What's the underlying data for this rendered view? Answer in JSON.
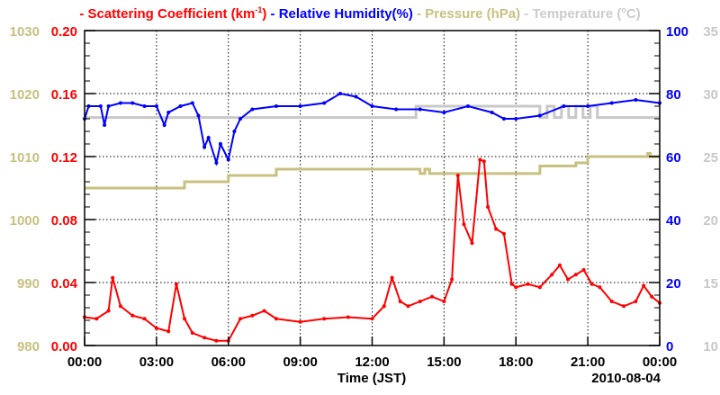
{
  "chart_data": {
    "type": "line",
    "title": "",
    "legend": {
      "placement": "top",
      "entries": [
        {
          "prefix": "- ",
          "label": "Scattering Coefficient (km",
          "sup": "-1",
          "suffix": ")",
          "color": "#ff0000"
        },
        {
          "prefix": " - ",
          "label": "Relative Humidity(%)",
          "sup": "",
          "suffix": "",
          "color": "#0000ff"
        },
        {
          "prefix": " - ",
          "label": "Pressure (hPa)",
          "sup": "",
          "suffix": "",
          "color": "#c8c080"
        },
        {
          "prefix": " - ",
          "label": "Temperature (",
          "sup": "o",
          "suffix": "C)",
          "color": "#cccccc"
        }
      ]
    },
    "xlabel": "Time (JST)",
    "date_label": "2010-08-04",
    "xlim_hours": [
      0,
      24
    ],
    "x_ticks": [
      "00:00",
      "03:00",
      "06:00",
      "09:00",
      "12:00",
      "15:00",
      "18:00",
      "21:00",
      "00:00"
    ],
    "grid": true,
    "axes": {
      "scattering": {
        "side": "left-inner",
        "range": [
          0,
          0.2
        ],
        "ticks": [
          "0.00",
          "0.04",
          "0.08",
          "0.12",
          "0.16",
          "0.20"
        ],
        "color": "#ff0000"
      },
      "pressure": {
        "side": "left-outer",
        "range": [
          980,
          1030
        ],
        "ticks": [
          "980",
          "990",
          "1000",
          "1010",
          "1020",
          "1030"
        ],
        "color": "#c8c080"
      },
      "humidity": {
        "side": "right-inner",
        "range": [
          0,
          100
        ],
        "ticks": [
          "0",
          "20",
          "40",
          "60",
          "80",
          "100"
        ],
        "color": "#0000ff"
      },
      "temperature": {
        "side": "right-outer",
        "range": [
          10,
          35
        ],
        "ticks": [
          "10",
          "15",
          "20",
          "25",
          "30",
          "35"
        ],
        "color": "#c8c8c8"
      }
    },
    "series": [
      {
        "name": "Scattering Coefficient",
        "axis": "scattering",
        "color": "#ff0000",
        "markers": true,
        "x": [
          0,
          0.5,
          1,
          1.17,
          1.5,
          2,
          2.5,
          3,
          3.5,
          3.83,
          4.17,
          4.5,
          5,
          5.5,
          6,
          6.5,
          7,
          7.5,
          8,
          9,
          10,
          11,
          12,
          12.5,
          12.83,
          13.17,
          13.5,
          14,
          14.5,
          15,
          15.33,
          15.58,
          15.83,
          16.17,
          16.5,
          16.67,
          16.83,
          17.17,
          17.5,
          17.83,
          18,
          18.5,
          19,
          19.5,
          19.83,
          20.17,
          20.5,
          20.83,
          21.17,
          21.5,
          22,
          22.5,
          23,
          23.33,
          23.67,
          24
        ],
        "y": [
          0.018,
          0.017,
          0.022,
          0.043,
          0.025,
          0.019,
          0.017,
          0.011,
          0.009,
          0.039,
          0.017,
          0.008,
          0.005,
          0.003,
          0.003,
          0.017,
          0.019,
          0.022,
          0.017,
          0.015,
          0.017,
          0.018,
          0.017,
          0.025,
          0.043,
          0.028,
          0.025,
          0.028,
          0.031,
          0.028,
          0.042,
          0.108,
          0.077,
          0.065,
          0.118,
          0.117,
          0.088,
          0.074,
          0.071,
          0.039,
          0.037,
          0.039,
          0.037,
          0.045,
          0.051,
          0.042,
          0.045,
          0.048,
          0.039,
          0.037,
          0.028,
          0.025,
          0.028,
          0.038,
          0.031,
          0.027
        ]
      },
      {
        "name": "Relative Humidity",
        "axis": "humidity",
        "color": "#0000ff",
        "markers": true,
        "x": [
          0,
          0.17,
          0.67,
          0.83,
          1,
          1.5,
          2,
          2.5,
          3,
          3.33,
          3.5,
          4,
          4.5,
          4.75,
          5,
          5.17,
          5.5,
          5.67,
          6,
          6.25,
          6.5,
          7,
          8,
          9,
          10,
          10.67,
          11.33,
          12,
          13,
          14,
          15,
          16,
          17,
          17.5,
          18,
          19,
          20,
          21,
          22,
          23,
          24
        ],
        "y": [
          72,
          76,
          76,
          70,
          76,
          77,
          77,
          76,
          76,
          70,
          74,
          76,
          77,
          73,
          63,
          66,
          58,
          64,
          59,
          68,
          72,
          75,
          76,
          76,
          77,
          80,
          79,
          76,
          75,
          75,
          74,
          76,
          74,
          72,
          72,
          73,
          76,
          76,
          77,
          78,
          77
        ]
      },
      {
        "name": "Pressure",
        "axis": "pressure",
        "color": "#c8c080",
        "markers": false,
        "step": true,
        "x": [
          0,
          4.17,
          6,
          8,
          14,
          14.2,
          14.4,
          15,
          19,
          20.5,
          21,
          23.5,
          23.6,
          24
        ],
        "y": [
          1005,
          1006,
          1007,
          1008,
          1007.3,
          1008,
          1007.3,
          1007.3,
          1008.5,
          1009,
          1010,
          1010.5,
          1010,
          1010
        ]
      },
      {
        "name": "Temperature",
        "axis": "temperature",
        "color": "#c8c8c8",
        "markers": false,
        "step": true,
        "x": [
          0,
          13.83,
          19,
          19.3,
          19.6,
          19.9,
          20.2,
          20.5,
          20.8,
          21.1,
          21.4,
          24
        ],
        "y": [
          28.1,
          29,
          28.1,
          29,
          28.1,
          29,
          28.1,
          29,
          28.1,
          29,
          28.1,
          28.1
        ]
      }
    ]
  }
}
